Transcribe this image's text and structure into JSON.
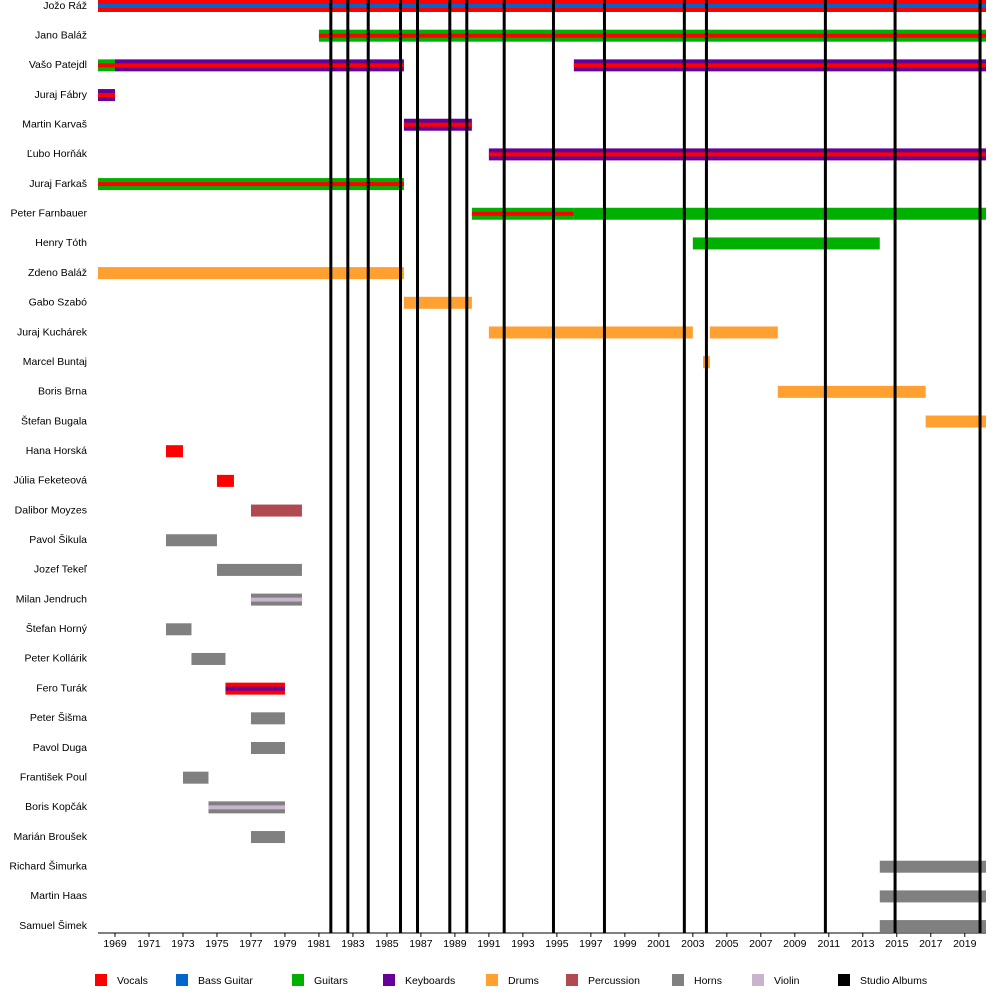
{
  "chart_data": {
    "type": "timeline",
    "legend": [
      {
        "name": "Vocals",
        "color": "#ff0000"
      },
      {
        "name": "Bass Guitar",
        "color": "#0066cc"
      },
      {
        "name": "Guitars",
        "color": "#00b000"
      },
      {
        "name": "Keyboards",
        "color": "#660099"
      },
      {
        "name": "Drums",
        "color": "#ffa030"
      },
      {
        "name": "Percussion",
        "color": "#b04a50"
      },
      {
        "name": "Horns",
        "color": "#808080"
      },
      {
        "name": "Violin",
        "color": "#c8b4cc"
      },
      {
        "name": "Studio Albums",
        "color": "#000000"
      }
    ],
    "members": [
      {
        "name": "Jožo Ráž",
        "bars": [
          {
            "start": 1968,
            "end": 2020.25,
            "roles": [
              0,
              1
            ]
          }
        ]
      },
      {
        "name": "Jano Baláž",
        "bars": [
          {
            "start": 1981,
            "end": 2020.25,
            "roles": [
              2,
              0
            ]
          }
        ]
      },
      {
        "name": "Vašo Patejdl",
        "bars": [
          {
            "start": 1968,
            "end": 1969,
            "roles": [
              2,
              0
            ]
          },
          {
            "start": 1969,
            "end": 1986,
            "roles": [
              3,
              0
            ]
          },
          {
            "start": 1996,
            "end": 2020.25,
            "roles": [
              3,
              0
            ]
          }
        ]
      },
      {
        "name": "Juraj Fábry",
        "bars": [
          {
            "start": 1968,
            "end": 1969,
            "roles": [
              3,
              0
            ]
          }
        ]
      },
      {
        "name": "Martin Karvaš",
        "bars": [
          {
            "start": 1986,
            "end": 1990,
            "roles": [
              3,
              0
            ]
          }
        ]
      },
      {
        "name": "Ľubo Horňák",
        "bars": [
          {
            "start": 1991,
            "end": 2020.25,
            "roles": [
              3,
              0
            ]
          }
        ]
      },
      {
        "name": "Juraj Farkaš",
        "bars": [
          {
            "start": 1968,
            "end": 1986,
            "roles": [
              2,
              0
            ]
          }
        ]
      },
      {
        "name": "Peter Farnbauer",
        "bars": [
          {
            "start": 1990,
            "end": 1996,
            "roles": [
              2,
              0
            ]
          },
          {
            "start": 1996,
            "end": 2020.25,
            "roles": [
              2
            ]
          }
        ]
      },
      {
        "name": "Henry Tóth",
        "bars": [
          {
            "start": 2003,
            "end": 2014,
            "roles": [
              2
            ]
          }
        ]
      },
      {
        "name": "Zdeno Baláž",
        "bars": [
          {
            "start": 1968,
            "end": 1986,
            "roles": [
              4
            ]
          }
        ]
      },
      {
        "name": "Gabo Szabó",
        "bars": [
          {
            "start": 1986,
            "end": 1990,
            "roles": [
              4
            ]
          }
        ]
      },
      {
        "name": "Juraj Kuchárek",
        "bars": [
          {
            "start": 1991,
            "end": 2003,
            "roles": [
              4
            ]
          },
          {
            "start": 2004,
            "end": 2008,
            "roles": [
              4
            ]
          }
        ]
      },
      {
        "name": "Marcel Buntaj",
        "bars": [
          {
            "start": 2003.6,
            "end": 2004,
            "roles": [
              4
            ]
          }
        ]
      },
      {
        "name": "Boris Brna",
        "bars": [
          {
            "start": 2008,
            "end": 2016.7,
            "roles": [
              4
            ]
          }
        ]
      },
      {
        "name": "Štefan Bugala",
        "bars": [
          {
            "start": 2016.7,
            "end": 2020.25,
            "roles": [
              4
            ]
          }
        ]
      },
      {
        "name": "Hana Horská",
        "bars": [
          {
            "start": 1972,
            "end": 1973,
            "roles": [
              0
            ]
          }
        ]
      },
      {
        "name": "Júlia Feketeová",
        "bars": [
          {
            "start": 1975,
            "end": 1976,
            "roles": [
              0
            ]
          }
        ]
      },
      {
        "name": "Dalibor Moyzes",
        "bars": [
          {
            "start": 1977,
            "end": 1980,
            "roles": [
              5
            ]
          }
        ]
      },
      {
        "name": "Pavol Šikula",
        "bars": [
          {
            "start": 1972,
            "end": 1975,
            "roles": [
              6
            ]
          }
        ]
      },
      {
        "name": "Jozef Tekeľ",
        "bars": [
          {
            "start": 1975,
            "end": 1980,
            "roles": [
              6
            ]
          }
        ]
      },
      {
        "name": "Milan Jendruch",
        "bars": [
          {
            "start": 1977,
            "end": 1980,
            "roles": [
              6,
              7
            ]
          }
        ]
      },
      {
        "name": "Štefan Horný",
        "bars": [
          {
            "start": 1972,
            "end": 1973.5,
            "roles": [
              6
            ]
          }
        ]
      },
      {
        "name": "Peter Kollárik",
        "bars": [
          {
            "start": 1973.5,
            "end": 1975.5,
            "roles": [
              6
            ]
          }
        ]
      },
      {
        "name": "Fero Turák",
        "bars": [
          {
            "start": 1975.5,
            "end": 1979,
            "roles": [
              0,
              3
            ]
          }
        ]
      },
      {
        "name": "Peter Šišma",
        "bars": [
          {
            "start": 1977,
            "end": 1979,
            "roles": [
              6
            ]
          }
        ]
      },
      {
        "name": "Pavol Duga",
        "bars": [
          {
            "start": 1977,
            "end": 1979,
            "roles": [
              6
            ]
          }
        ]
      },
      {
        "name": "František Poul",
        "bars": [
          {
            "start": 1973,
            "end": 1974.5,
            "roles": [
              6
            ]
          }
        ]
      },
      {
        "name": "Boris Kopčák",
        "bars": [
          {
            "start": 1974.5,
            "end": 1979,
            "roles": [
              6,
              7
            ]
          }
        ]
      },
      {
        "name": "Marián Broušek",
        "bars": [
          {
            "start": 1977,
            "end": 1979,
            "roles": [
              6
            ]
          }
        ]
      },
      {
        "name": "Richard Šimurka",
        "bars": [
          {
            "start": 2014,
            "end": 2020.25,
            "roles": [
              6
            ]
          }
        ]
      },
      {
        "name": "Martin Haas",
        "bars": [
          {
            "start": 2014,
            "end": 2020.25,
            "roles": [
              6
            ]
          }
        ]
      },
      {
        "name": "Samuel Šimek",
        "bars": [
          {
            "start": 2014,
            "end": 2020.25,
            "roles": [
              6
            ]
          }
        ]
      }
    ],
    "albums": [
      1981.7,
      1982.7,
      1983.9,
      1985.8,
      1986.8,
      1988.7,
      1989.7,
      1991.9,
      1994.8,
      1997.8,
      2002.5,
      2003.8,
      2010.8,
      2014.9,
      2019.9
    ],
    "xlim": [
      1968,
      2020.25
    ],
    "xticks": [
      1969,
      1971,
      1973,
      1975,
      1977,
      1979,
      1981,
      1983,
      1985,
      1987,
      1989,
      1991,
      1993,
      1995,
      1997,
      1999,
      2001,
      2003,
      2005,
      2007,
      2009,
      2011,
      2013,
      2015,
      2017,
      2019
    ]
  }
}
